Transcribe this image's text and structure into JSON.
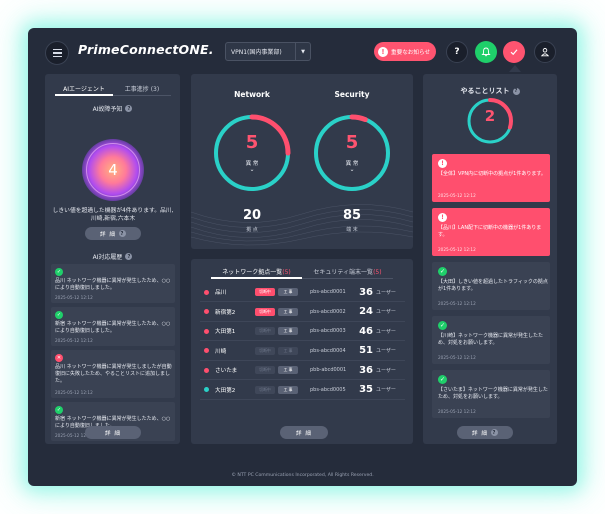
{
  "header": {
    "logo": "PrimeConnectONE.",
    "network_select": "VPN1(国内事業部)",
    "notice_label": "重要なお知らせ",
    "icons": [
      "menu-icon",
      "alert-icon",
      "help-icon",
      "bell-icon",
      "check-icon",
      "user-icon"
    ],
    "help_glyph": "?"
  },
  "left": {
    "tabs": [
      {
        "label": "AIエージェント",
        "active": true
      },
      {
        "label": "工事進捗 (3)",
        "active": false
      }
    ],
    "forecast_title": "AI故障予知",
    "forecast_count": "4",
    "forecast_message": "しきい値を超過した機器が4件あります。品川,川崎,新宿,六本木",
    "detail_label": "詳 細",
    "history_title": "AI対応履歴",
    "history": [
      {
        "status": "ok",
        "text": "品川 ネットワーク機器に異常が発生したため、○○により自動復旧しました。",
        "time": "2025-05-12 12:12"
      },
      {
        "status": "ok",
        "text": "新宿 ネットワーク機器に異常が発生したため、○○により自動復旧しました。",
        "time": "2025-05-12 12:12"
      },
      {
        "status": "error",
        "text": "品川 ネットワーク機器に異常が発生しましたが自動復旧に失敗したため、やることリストに追加しました。",
        "time": "2025-05-12 12:12"
      },
      {
        "status": "ok",
        "text": "新宿 ネットワーク機器に異常が発生したため、○○により自動復旧しました。",
        "time": "2025-05-12 12:12"
      }
    ]
  },
  "status": {
    "network": {
      "title": "Network",
      "abnormal": "5",
      "abnormal_label": "異 常",
      "total": "20",
      "unit": "拠 点",
      "ratio": 0.25
    },
    "security": {
      "title": "Security",
      "abnormal": "5",
      "abnormal_label": "異 常",
      "total": "85",
      "unit": "端 末",
      "ratio": 0.06
    }
  },
  "list": {
    "tabs": [
      {
        "label": "ネットワーク拠点一覧",
        "count": "(5)",
        "active": true
      },
      {
        "label": "セキュリティ端末一覧",
        "count": "(5)",
        "active": false
      }
    ],
    "badge_labels": {
      "cut": "切断中",
      "work": "工 事"
    },
    "user_unit": "ユーザー",
    "rows": [
      {
        "name": "品川",
        "dot": "#ff4f6e",
        "cut": true,
        "work": true,
        "id": "pbs-abcd0001",
        "users": "36"
      },
      {
        "name": "新宿第2",
        "dot": "#ff4f6e",
        "cut": true,
        "work": true,
        "id": "pbs-abcd0002",
        "users": "24"
      },
      {
        "name": "大田第1",
        "dot": "#ff4f6e",
        "cut": false,
        "work": true,
        "id": "pbs-abcd0003",
        "users": "46"
      },
      {
        "name": "川崎",
        "dot": "#ff4f6e",
        "cut": false,
        "work": false,
        "id": "pbs-abcd0004",
        "users": "51"
      },
      {
        "name": "さいたま",
        "dot": "#ff4f6e",
        "cut": false,
        "work": true,
        "id": "pbb-abcd0001",
        "users": "36"
      },
      {
        "name": "大田第2",
        "dot": "#2ad1c8",
        "cut": false,
        "work": true,
        "id": "pbs-abcd0005",
        "users": "35"
      }
    ],
    "detail_label": "詳 細"
  },
  "todo": {
    "title": "やることリスト",
    "count": "2",
    "ratio": 0.3,
    "items": [
      {
        "type": "alert",
        "text": "【全体】VPN内に切断中の拠点が1件あります。",
        "time": "2025-05-12 12:12"
      },
      {
        "type": "alert",
        "text": "【品川】LAN配下に切断中の機器が1件あります。",
        "time": "2025-05-12 12:12"
      },
      {
        "type": "ok",
        "text": "【大田】しきい値を超過したトラフィックの拠点が1件あります。",
        "time": "2025-05-12 12:12"
      },
      {
        "type": "ok",
        "text": "【川崎】ネットワーク機器に異常が発生したため、対処をお願いします。",
        "time": "2025-05-12 12:12"
      },
      {
        "type": "ok",
        "text": "【さいたま】ネットワーク機器に異常が発生したため、対処をお願いします。",
        "time": "2025-05-12 12:12"
      }
    ],
    "detail_label": "詳 細"
  },
  "footer": "© NTT PC Communications Incorporated, All Rights Reserved.",
  "colors": {
    "accent_red": "#ff4f6e",
    "accent_green": "#1fcf6a",
    "ring_teal": "#2ad1c8",
    "panel": "#323a4b",
    "bg": "#252c3b"
  }
}
